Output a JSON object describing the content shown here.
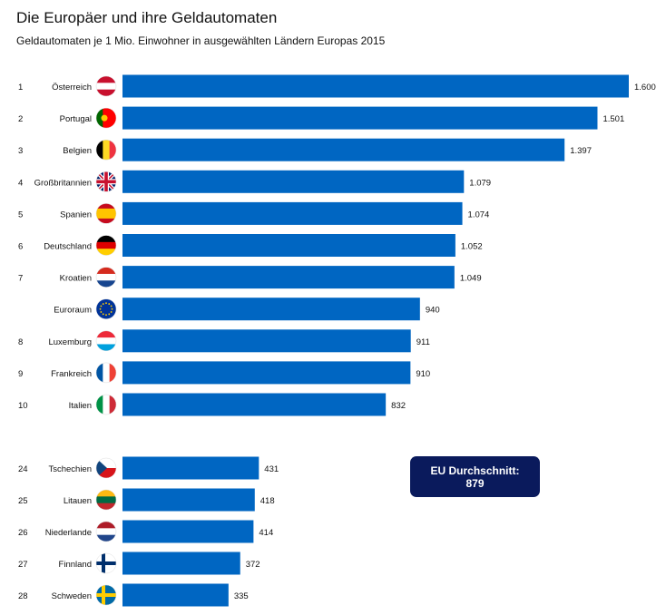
{
  "title": "Die Europäer und ihre Geldautomaten",
  "subtitle": "Geldautomaten je 1 Mio. Einwohner in ausgewählten Ländern Europas 2015",
  "avg_box": {
    "label": "EU Durchschnitt:",
    "value": "879"
  },
  "colors": {
    "bar": "#0066c2",
    "avg_box": "#0a1a5c"
  },
  "chart_data": {
    "type": "bar",
    "orientation": "horizontal",
    "title": "Die Europäer und ihre Geldautomaten",
    "subtitle": "Geldautomaten je 1 Mio. Einwohner in ausgewählten Ländern Europas 2015",
    "grid": false,
    "rows": [
      {
        "rank": "1",
        "country": "Österreich",
        "flag": "at",
        "value": 1600,
        "label": "1.600"
      },
      {
        "rank": "2",
        "country": "Portugal",
        "flag": "pt",
        "value": 1501,
        "label": "1.501"
      },
      {
        "rank": "3",
        "country": "Belgien",
        "flag": "be",
        "value": 1397,
        "label": "1.397"
      },
      {
        "rank": "4",
        "country": "Großbritannien",
        "flag": "gb",
        "value": 1079,
        "label": "1.079"
      },
      {
        "rank": "5",
        "country": "Spanien",
        "flag": "es",
        "value": 1074,
        "label": "1.074"
      },
      {
        "rank": "6",
        "country": "Deutschland",
        "flag": "de",
        "value": 1052,
        "label": "1.052"
      },
      {
        "rank": "7",
        "country": "Kroatien",
        "flag": "hr",
        "value": 1049,
        "label": "1.049"
      },
      {
        "rank": "",
        "country": "Euroraum",
        "flag": "eu",
        "value": 940,
        "label": "940"
      },
      {
        "rank": "8",
        "country": "Luxemburg",
        "flag": "lu",
        "value": 911,
        "label": "911"
      },
      {
        "rank": "9",
        "country": "Frankreich",
        "flag": "fr",
        "value": 910,
        "label": "910"
      },
      {
        "rank": "10",
        "country": "Italien",
        "flag": "it",
        "value": 832,
        "label": "832"
      },
      {
        "rank": "24",
        "country": "Tschechien",
        "flag": "cz",
        "value": 431,
        "label": "431"
      },
      {
        "rank": "25",
        "country": "Litauen",
        "flag": "lt",
        "value": 418,
        "label": "418"
      },
      {
        "rank": "26",
        "country": "Niederlande",
        "flag": "nl",
        "value": 414,
        "label": "414"
      },
      {
        "rank": "27",
        "country": "Finnland",
        "flag": "fi",
        "value": 372,
        "label": "372"
      },
      {
        "rank": "28",
        "country": "Schweden",
        "flag": "se",
        "value": 335,
        "label": "335"
      }
    ]
  }
}
